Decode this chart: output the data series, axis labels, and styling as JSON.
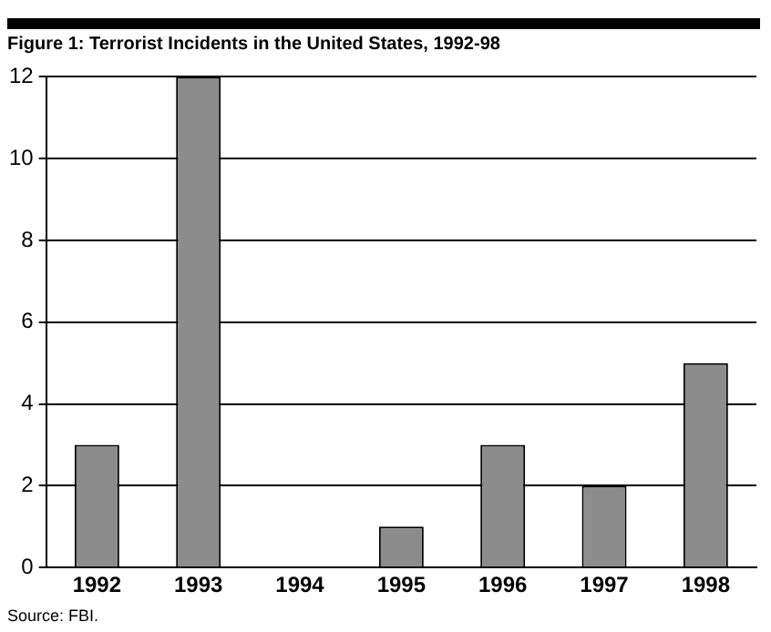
{
  "chart_data": {
    "type": "bar",
    "title": "Figure 1:  Terrorist Incidents in the  United States, 1992-98",
    "categories": [
      "1992",
      "1993",
      "1994",
      "1995",
      "1996",
      "1997",
      "1998"
    ],
    "values": [
      3,
      12,
      0,
      1,
      3,
      2,
      5
    ],
    "color": "#8c8c8c",
    "ylim": [
      0,
      12
    ],
    "yticks": [
      0,
      2,
      4,
      6,
      8,
      10,
      12
    ],
    "grid": "y",
    "annotations": [
      "Source:  FBI."
    ]
  }
}
